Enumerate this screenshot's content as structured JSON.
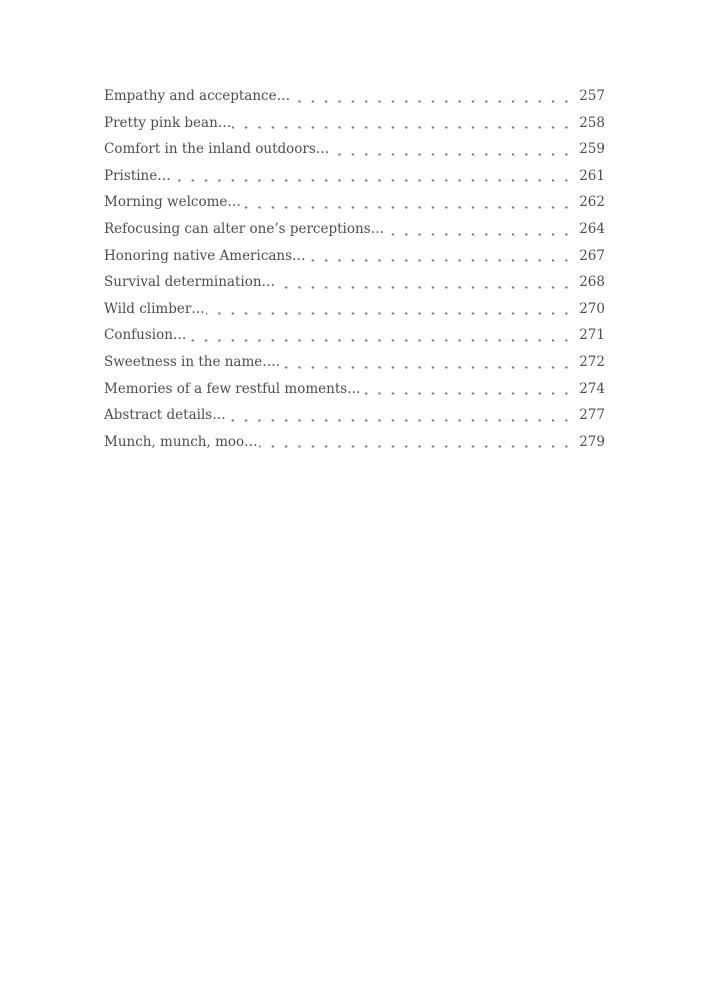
{
  "page": {
    "background_color": "#ffffff",
    "text_color": "#4d4d4d",
    "leader_dot_color": "#7a7a7a"
  },
  "toc": {
    "entries": [
      {
        "title": "Empathy and acceptance…",
        "page": "257"
      },
      {
        "title": "Pretty pink bean…",
        "page": "258"
      },
      {
        "title": "Comfort in the inland outdoors…",
        "page": "259"
      },
      {
        "title": "Pristine…",
        "page": "261"
      },
      {
        "title": "Morning welcome…",
        "page": "262"
      },
      {
        "title": "Refocusing can alter one’s perceptions…",
        "page": "264"
      },
      {
        "title": "Honoring native Americans…",
        "page": "267"
      },
      {
        "title": "Survival determination…",
        "page": "268"
      },
      {
        "title": "Wild climber…",
        "page": "270"
      },
      {
        "title": "Confusion…",
        "page": "271"
      },
      {
        "title": "Sweetness in the name….",
        "page": "272"
      },
      {
        "title": "Memories of a few restful moments…",
        "page": "274"
      },
      {
        "title": "Abstract details…",
        "page": "277"
      },
      {
        "title": "Munch, munch, moo…",
        "page": "279"
      }
    ]
  }
}
